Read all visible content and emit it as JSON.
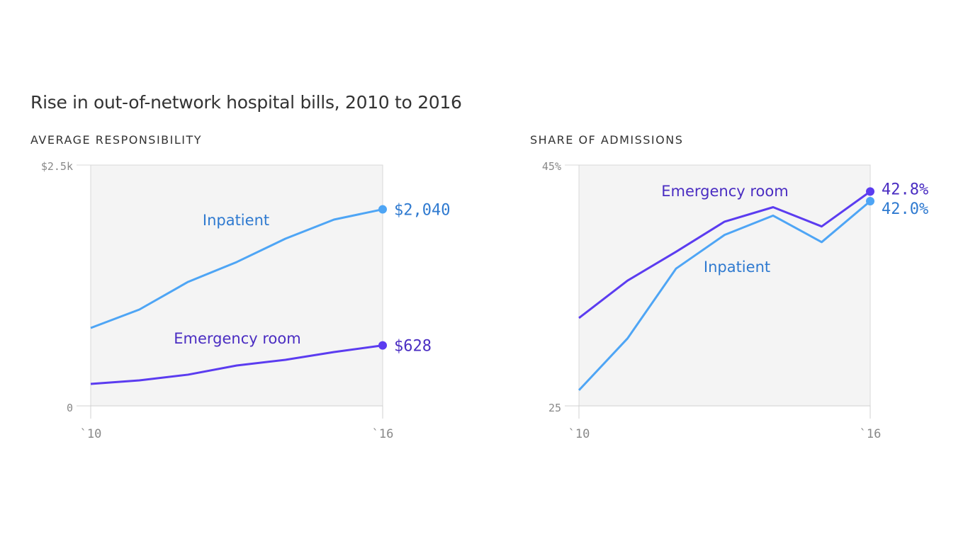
{
  "title": "Rise in out-of-network hospital bills, 2010 to 2016",
  "colors": {
    "inpatient_line": "#4ea5f5",
    "inpatient_text": "#2f7ad0",
    "er_line": "#5b3cf0",
    "er_text": "#4a2dc2"
  },
  "chart_data": [
    {
      "type": "line",
      "title": "AVERAGE RESPONSIBILITY",
      "x": [
        2010,
        2011,
        2012,
        2013,
        2014,
        2015,
        2016
      ],
      "x_tick_labels": [
        "`10",
        "`16"
      ],
      "y_tick_labels": [
        "$2.5k",
        "0"
      ],
      "ylim": [
        0,
        2500
      ],
      "grid": false,
      "series": [
        {
          "name": "Inpatient",
          "key": "inpatient",
          "values": [
            809,
            1000,
            1287,
            1493,
            1735,
            1934,
            2040
          ],
          "end_label": "$2,040"
        },
        {
          "name": "Emergency room",
          "key": "er",
          "values": [
            228,
            265,
            324,
            419,
            478,
            559,
            628
          ],
          "end_label": "$628"
        }
      ]
    },
    {
      "type": "line",
      "title": "SHARE OF ADMISSIONS",
      "x": [
        2010,
        2011,
        2012,
        2013,
        2014,
        2015,
        2016
      ],
      "x_tick_labels": [
        "`10",
        "`16"
      ],
      "y_tick_labels": [
        "45%",
        "25"
      ],
      "ylim": [
        25,
        45
      ],
      "grid": false,
      "series": [
        {
          "name": "Emergency room",
          "key": "er",
          "values": [
            32.3,
            35.4,
            37.8,
            40.3,
            41.5,
            39.9,
            42.8
          ],
          "end_label": "42.8%"
        },
        {
          "name": "Inpatient",
          "key": "inpatient",
          "values": [
            26.3,
            30.6,
            36.4,
            39.2,
            40.8,
            38.6,
            42.0
          ],
          "end_label": "42.0%"
        }
      ]
    }
  ]
}
